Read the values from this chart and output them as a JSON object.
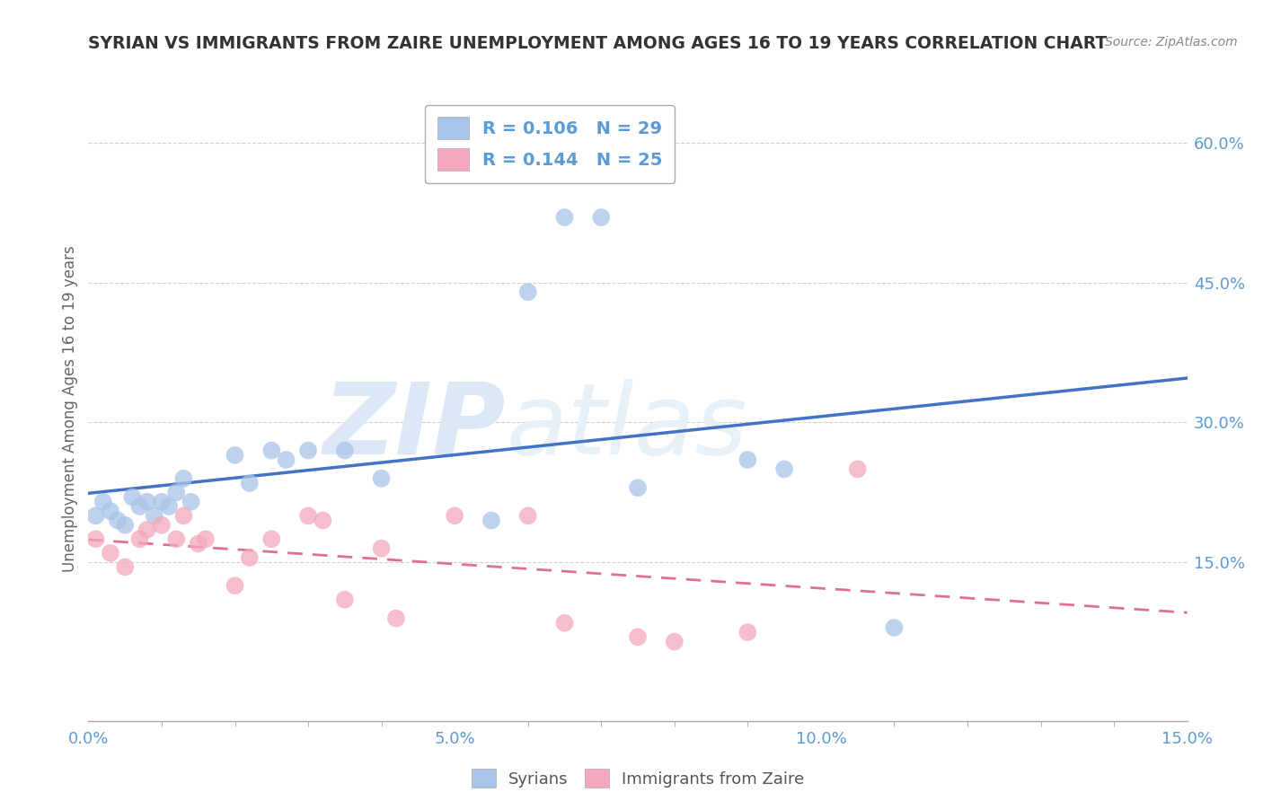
{
  "title": "SYRIAN VS IMMIGRANTS FROM ZAIRE UNEMPLOYMENT AMONG AGES 16 TO 19 YEARS CORRELATION CHART",
  "source": "Source: ZipAtlas.com",
  "ylabel": "Unemployment Among Ages 16 to 19 years",
  "xlim": [
    0.0,
    0.15
  ],
  "ylim": [
    -0.02,
    0.65
  ],
  "xticks": [
    0.0,
    0.05,
    0.1,
    0.15
  ],
  "xtick_labels": [
    "0.0%",
    "5.0%",
    "10.0%",
    "15.0%"
  ],
  "yticks_right": [
    0.15,
    0.3,
    0.45,
    0.6
  ],
  "ytick_labels_right": [
    "15.0%",
    "30.0%",
    "45.0%",
    "60.0%"
  ],
  "watermark_zip": "ZIP",
  "watermark_atlas": "atlas",
  "series": [
    {
      "name": "Syrians",
      "color": "#a8c4e8",
      "line_color": "#4472c4",
      "line_style": "solid",
      "R": 0.106,
      "N": 29,
      "x": [
        0.001,
        0.002,
        0.003,
        0.004,
        0.005,
        0.006,
        0.007,
        0.008,
        0.009,
        0.01,
        0.011,
        0.012,
        0.013,
        0.014,
        0.02,
        0.022,
        0.025,
        0.027,
        0.03,
        0.035,
        0.04,
        0.055,
        0.06,
        0.065,
        0.07,
        0.075,
        0.09,
        0.095,
        0.11
      ],
      "y": [
        0.2,
        0.215,
        0.205,
        0.195,
        0.19,
        0.22,
        0.21,
        0.215,
        0.2,
        0.215,
        0.21,
        0.225,
        0.24,
        0.215,
        0.265,
        0.235,
        0.27,
        0.26,
        0.27,
        0.27,
        0.24,
        0.195,
        0.44,
        0.52,
        0.52,
        0.23,
        0.26,
        0.25,
        0.08
      ]
    },
    {
      "name": "Immigrants from Zaire",
      "color": "#f4a8bc",
      "line_color": "#e07090",
      "line_style": "dashed",
      "R": 0.144,
      "N": 25,
      "x": [
        0.001,
        0.003,
        0.005,
        0.007,
        0.008,
        0.01,
        0.012,
        0.013,
        0.015,
        0.016,
        0.02,
        0.022,
        0.025,
        0.03,
        0.032,
        0.035,
        0.04,
        0.042,
        0.05,
        0.06,
        0.065,
        0.075,
        0.08,
        0.09,
        0.105
      ],
      "y": [
        0.175,
        0.16,
        0.145,
        0.175,
        0.185,
        0.19,
        0.175,
        0.2,
        0.17,
        0.175,
        0.125,
        0.155,
        0.175,
        0.2,
        0.195,
        0.11,
        0.165,
        0.09,
        0.2,
        0.2,
        0.085,
        0.07,
        0.065,
        0.075,
        0.25
      ]
    }
  ],
  "background_color": "#ffffff",
  "grid_color": "#cccccc",
  "title_color": "#333333",
  "axis_label_color": "#666666",
  "tick_label_color": "#5b9bd5",
  "watermark_color": "#dce8f5",
  "legend_text_color": "#5b9bd5"
}
